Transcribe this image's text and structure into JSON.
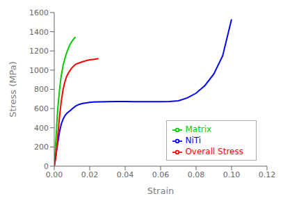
{
  "chart_data": {
    "type": "line",
    "xlabel": "Strain",
    "ylabel": "Stress (MPa)",
    "xlim": [
      0,
      0.12
    ],
    "ylim": [
      0,
      1600
    ],
    "xticks": [
      {
        "value": 0,
        "label": "0.00"
      },
      0.02,
      0.04,
      0.06,
      0.08,
      {
        "value": 0.1,
        "label": "0.10"
      },
      0.12
    ],
    "yticks": [
      0,
      200,
      400,
      600,
      800,
      1000,
      1200,
      1400,
      1600
    ],
    "grid": false,
    "legend": "lower right",
    "series": [
      {
        "name": "Matrix",
        "color": "#00cc00",
        "x": [
          0.0,
          0.0005,
          0.001,
          0.0015,
          0.002,
          0.003,
          0.004,
          0.005,
          0.006,
          0.007,
          0.008,
          0.009,
          0.01,
          0.011,
          0.012
        ],
        "values": [
          0,
          150,
          290,
          460,
          600,
          800,
          950,
          1050,
          1120,
          1180,
          1230,
          1270,
          1300,
          1325,
          1345
        ]
      },
      {
        "name": "NiTi",
        "color": "#0000ff",
        "x": [
          0.0,
          0.0005,
          0.001,
          0.0015,
          0.002,
          0.003,
          0.004,
          0.005,
          0.006,
          0.007,
          0.008,
          0.009,
          0.01,
          0.012,
          0.014,
          0.016,
          0.018,
          0.02,
          0.022,
          0.025,
          0.03,
          0.035,
          0.04,
          0.045,
          0.05,
          0.055,
          0.06,
          0.065,
          0.07,
          0.075,
          0.08,
          0.085,
          0.09,
          0.095,
          0.1
        ],
        "values": [
          0,
          60,
          120,
          185,
          245,
          360,
          440,
          490,
          525,
          548,
          565,
          578,
          595,
          625,
          643,
          653,
          659,
          664,
          667,
          670,
          672,
          673,
          673,
          672,
          671,
          671,
          672,
          673,
          680,
          710,
          760,
          840,
          960,
          1150,
          1530
        ]
      },
      {
        "name": "Overall Stress",
        "color": "#ff0000",
        "x": [
          0.0,
          0.0005,
          0.001,
          0.0015,
          0.002,
          0.003,
          0.004,
          0.005,
          0.006,
          0.007,
          0.008,
          0.009,
          0.01,
          0.012,
          0.014,
          0.016,
          0.018,
          0.02,
          0.022,
          0.025
        ],
        "values": [
          0,
          50,
          110,
          200,
          310,
          520,
          680,
          800,
          880,
          935,
          970,
          1000,
          1025,
          1060,
          1075,
          1088,
          1098,
          1107,
          1112,
          1120
        ]
      }
    ]
  }
}
